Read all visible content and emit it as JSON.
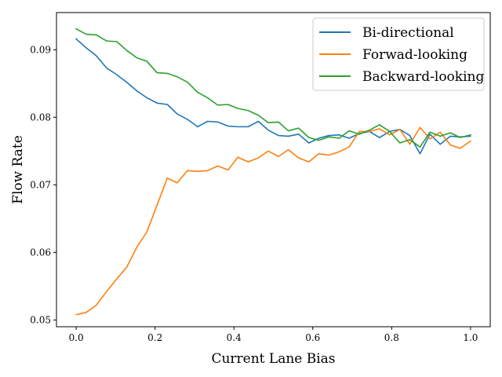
{
  "chart_data": {
    "type": "line",
    "title": "",
    "xlabel": "Current Lane Bias",
    "ylabel": "Flow Rate",
    "xlim": [
      -0.05,
      1.05
    ],
    "ylim": [
      0.049,
      0.0955
    ],
    "xticks": [
      0.0,
      0.2,
      0.4,
      0.6,
      0.8,
      1.0
    ],
    "xtick_labels": [
      "0.0",
      "0.2",
      "0.4",
      "0.6",
      "0.8",
      "1.0"
    ],
    "yticks": [
      0.05,
      0.06,
      0.07,
      0.08,
      0.09
    ],
    "ytick_labels": [
      "0.05",
      "0.06",
      "0.07",
      "0.08",
      "0.09"
    ],
    "grid": false,
    "legend_position": "top-right",
    "x": [
      0.0,
      0.025,
      0.051,
      0.077,
      0.103,
      0.128,
      0.154,
      0.179,
      0.205,
      0.231,
      0.256,
      0.282,
      0.308,
      0.333,
      0.359,
      0.385,
      0.41,
      0.436,
      0.462,
      0.487,
      0.513,
      0.538,
      0.564,
      0.59,
      0.615,
      0.641,
      0.667,
      0.692,
      0.718,
      0.744,
      0.769,
      0.795,
      0.821,
      0.846,
      0.872,
      0.897,
      0.923,
      0.949,
      0.974,
      1.0
    ],
    "series": [
      {
        "name": "Bi-directional",
        "color": "#1f77b4",
        "values": [
          0.0916,
          0.0903,
          0.0891,
          0.0873,
          0.0863,
          0.0852,
          0.0839,
          0.0829,
          0.0821,
          0.0819,
          0.0805,
          0.0797,
          0.0786,
          0.0794,
          0.0793,
          0.0787,
          0.0786,
          0.0786,
          0.0794,
          0.0781,
          0.0773,
          0.0772,
          0.0775,
          0.0762,
          0.0769,
          0.0773,
          0.0774,
          0.0769,
          0.0776,
          0.0779,
          0.077,
          0.0779,
          0.0782,
          0.0773,
          0.0746,
          0.0775,
          0.076,
          0.0772,
          0.0771,
          0.0772
        ]
      },
      {
        "name": "Forwad-looking",
        "color": "#ff7f0e",
        "values": [
          0.0508,
          0.0511,
          0.0522,
          0.0542,
          0.0561,
          0.0578,
          0.0608,
          0.063,
          0.067,
          0.071,
          0.0703,
          0.0721,
          0.072,
          0.0721,
          0.0728,
          0.0722,
          0.0741,
          0.0734,
          0.074,
          0.075,
          0.0742,
          0.0752,
          0.074,
          0.0734,
          0.0746,
          0.0744,
          0.0749,
          0.0756,
          0.0779,
          0.0779,
          0.0783,
          0.0774,
          0.0782,
          0.076,
          0.0785,
          0.0768,
          0.0778,
          0.0759,
          0.0754,
          0.0765
        ]
      },
      {
        "name": "Backward-looking",
        "color": "#2ca02c",
        "values": [
          0.0931,
          0.0923,
          0.0922,
          0.0913,
          0.0912,
          0.0899,
          0.0888,
          0.0883,
          0.0866,
          0.0865,
          0.086,
          0.0852,
          0.0837,
          0.0829,
          0.0818,
          0.0819,
          0.0813,
          0.081,
          0.0803,
          0.0792,
          0.0793,
          0.078,
          0.0784,
          0.077,
          0.0766,
          0.0771,
          0.0769,
          0.078,
          0.0775,
          0.0781,
          0.0789,
          0.0779,
          0.0762,
          0.0767,
          0.0756,
          0.0778,
          0.0772,
          0.0777,
          0.077,
          0.0774
        ]
      }
    ]
  }
}
